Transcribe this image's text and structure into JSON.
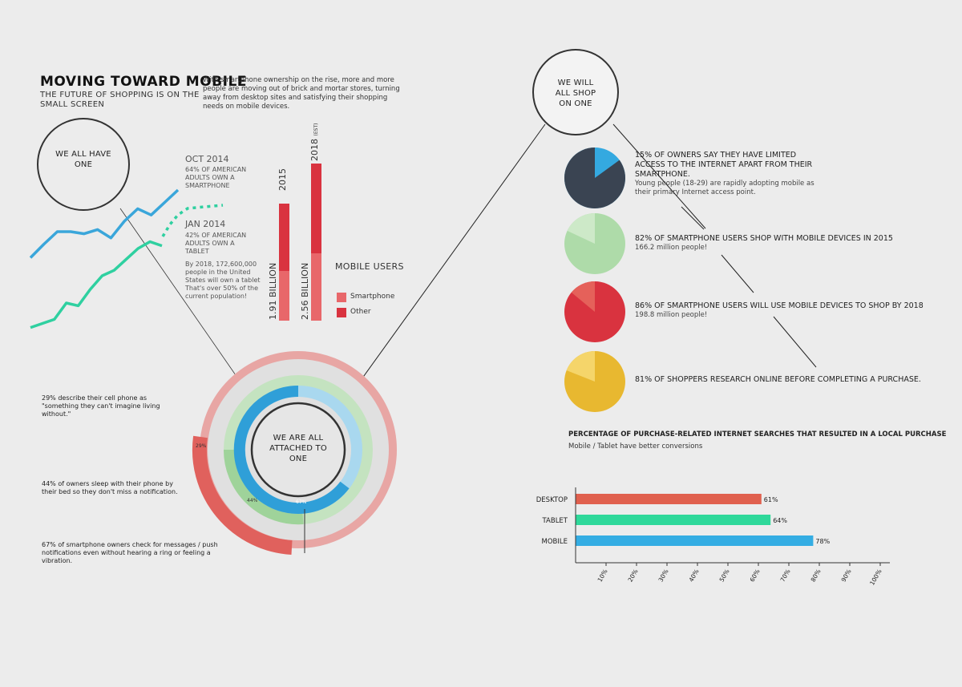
{
  "header": {
    "title": "MOVING TOWARD MOBILE",
    "subtitle": "THE FUTURE OF SHOPPING IS ON THE SMALL SCREEN",
    "intro": "With smartphone ownership on the rise, more and more people are moving out of brick and mortar stores, turning away from desktop sites and satisfying their shopping needs on mobile devices."
  },
  "circles": {
    "we_all_have_one": "WE ALL HAVE ONE",
    "we_will_all_shop": "WE WILL ALL SHOP ON ONE",
    "we_are_attached": "WE ARE ALL ATTACHED TO ONE"
  },
  "ownership": {
    "oct_title": "OCT 2014",
    "oct_text": "64% OF AMERICAN ADULTS OWN A SMARTPHONE",
    "jan_title": "JAN 2014",
    "jan_text": "42% OF AMERICAN ADULTS OWN A TABLET",
    "projection": "By 2018, 172,600,000 people in the United States will own a tablet That's over 50% of the current population!"
  },
  "mobile_users": {
    "title": "MOBILE USERS",
    "legend": [
      {
        "label": "Smartphone",
        "color": "#e8676a"
      },
      {
        "label": "Other",
        "color": "#d9333f"
      }
    ],
    "bars": [
      {
        "year": "2015",
        "year_suffix": "",
        "value_label": "1.91 BILLION"
      },
      {
        "year": "2018",
        "year_suffix": "(EST)",
        "value_label": "2.56 BILLION"
      }
    ]
  },
  "attachment": {
    "stats": [
      {
        "text": "29% describe their cell phone as \"something they can't imagine living without.\"",
        "pct_label": "29%"
      },
      {
        "text": "44% of owners sleep with their phone by their bed so they don't miss a notification.",
        "pct_label": "44%"
      },
      {
        "text": "67% of smartphone owners check for messages / push notifications even without hearing a ring or feeling a vibration.",
        "pct_label": "67%"
      }
    ]
  },
  "shop_stats": [
    {
      "head": "15% OF OWNERS SAY THEY HAVE LIMITED ACCESS TO THE INTERNET APART FROM THEIR SMARTPHONE.",
      "sub": "Young people (18-29) are rapidly adopting mobile as their primary Internet access point.",
      "pct": 15,
      "color": "#34a9e0",
      "slice": "#3a4452"
    },
    {
      "head": "82% OF SMARTPHONE USERS SHOP WITH MOBILE DEVICES IN 2015",
      "sub": "166.2 million people!",
      "pct": 82,
      "color": "#aedba9",
      "slice": "#cde9c8"
    },
    {
      "head": "86% OF SMARTPHONE USERS WILL USE MOBILE DEVICES TO SHOP BY 2018",
      "sub": "198.8 million people!",
      "pct": 86,
      "color": "#d9333f",
      "slice": "#e5615a"
    },
    {
      "head": "81% OF SHOPPERS RESEARCH ONLINE BEFORE COMPLETING A PURCHASE.",
      "sub": "",
      "pct": 81,
      "color": "#e8b830",
      "slice": "#f5d56a"
    }
  ],
  "chart_data": [
    {
      "type": "line",
      "series": [
        {
          "name": "",
          "color": "#3aa6da",
          "values": [
            5,
            18,
            30,
            30,
            28,
            32,
            24,
            40,
            52,
            46,
            58,
            70
          ]
        },
        {
          "name": "",
          "color": "#2fd0a0",
          "values": [
            2,
            5,
            8,
            20,
            18,
            30,
            40,
            44,
            52,
            60,
            65,
            62
          ]
        }
      ]
    },
    {
      "type": "bar",
      "title": "MOBILE USERS",
      "categories": [
        "2015",
        "2018"
      ],
      "series": [
        {
          "name": "Smartphone",
          "values": [
            0.64,
            0.84
          ]
        },
        {
          "name": "Other",
          "values": [
            1.27,
            1.72
          ]
        }
      ],
      "value_labels": [
        "1.91 BILLION",
        "2.56 BILLION"
      ]
    },
    {
      "type": "pie",
      "values": [
        29,
        44,
        67
      ],
      "labels": [
        "29%",
        "44%",
        "67%"
      ]
    },
    {
      "type": "bar",
      "title": "PERCENTAGE OF PURCHASE-RELATED INTERNET SEARCHES THAT RESULTED IN A LOCAL PURCHASE",
      "subtitle": "Mobile / Tablet have better conversions",
      "categories": [
        "DESKTOP",
        "TABLET",
        "MOBILE"
      ],
      "values": [
        61,
        64,
        78
      ],
      "value_labels": [
        "61%",
        "64%",
        "78%"
      ],
      "colors": [
        "#e0604e",
        "#2fd89a",
        "#34ade3"
      ],
      "xlim": [
        0,
        100
      ],
      "xticks": [
        "10%",
        "20%",
        "30%",
        "40%",
        "50%",
        "60%",
        "70%",
        "80%",
        "90%",
        "100%"
      ]
    }
  ]
}
